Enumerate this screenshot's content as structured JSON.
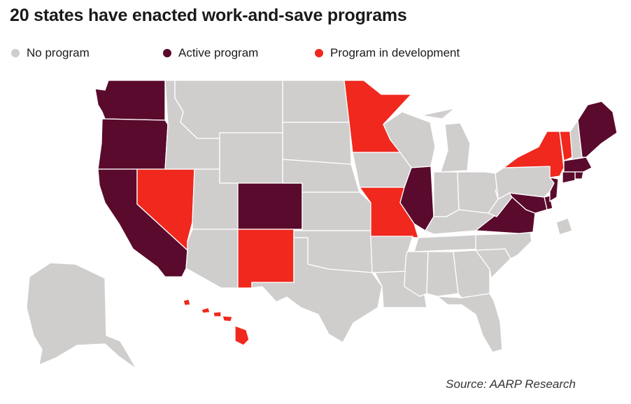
{
  "title": "20 states have enacted work-and-save programs",
  "legend": [
    {
      "key": "none",
      "label": "No program",
      "color": "#d0cdcd"
    },
    {
      "key": "active",
      "label": "Active program",
      "color": "#5a0a2c"
    },
    {
      "key": "dev",
      "label": "Program in development",
      "color": "#f0281e"
    }
  ],
  "source": "Source: AARP Research",
  "states": [
    {
      "abbr": "WA",
      "status": "active"
    },
    {
      "abbr": "OR",
      "status": "active"
    },
    {
      "abbr": "CA",
      "status": "active"
    },
    {
      "abbr": "NV",
      "status": "dev"
    },
    {
      "abbr": "ID",
      "status": "none"
    },
    {
      "abbr": "MT",
      "status": "none"
    },
    {
      "abbr": "WY",
      "status": "none"
    },
    {
      "abbr": "UT",
      "status": "none"
    },
    {
      "abbr": "AZ",
      "status": "none"
    },
    {
      "abbr": "CO",
      "status": "active"
    },
    {
      "abbr": "NM",
      "status": "dev"
    },
    {
      "abbr": "ND",
      "status": "none"
    },
    {
      "abbr": "SD",
      "status": "none"
    },
    {
      "abbr": "NE",
      "status": "none"
    },
    {
      "abbr": "KS",
      "status": "none"
    },
    {
      "abbr": "OK",
      "status": "none"
    },
    {
      "abbr": "TX",
      "status": "none"
    },
    {
      "abbr": "MN",
      "status": "dev"
    },
    {
      "abbr": "IA",
      "status": "none"
    },
    {
      "abbr": "MO",
      "status": "dev"
    },
    {
      "abbr": "AR",
      "status": "none"
    },
    {
      "abbr": "LA",
      "status": "none"
    },
    {
      "abbr": "WI",
      "status": "none"
    },
    {
      "abbr": "IL",
      "status": "active"
    },
    {
      "abbr": "MI",
      "status": "none"
    },
    {
      "abbr": "IN",
      "status": "none"
    },
    {
      "abbr": "OH",
      "status": "none"
    },
    {
      "abbr": "KY",
      "status": "none"
    },
    {
      "abbr": "TN",
      "status": "none"
    },
    {
      "abbr": "MS",
      "status": "none"
    },
    {
      "abbr": "AL",
      "status": "none"
    },
    {
      "abbr": "GA",
      "status": "none"
    },
    {
      "abbr": "FL",
      "status": "none"
    },
    {
      "abbr": "SC",
      "status": "none"
    },
    {
      "abbr": "NC",
      "status": "none"
    },
    {
      "abbr": "VA",
      "status": "active"
    },
    {
      "abbr": "WV",
      "status": "none"
    },
    {
      "abbr": "MD",
      "status": "active"
    },
    {
      "abbr": "DE",
      "status": "active"
    },
    {
      "abbr": "DC",
      "status": "none"
    },
    {
      "abbr": "PA",
      "status": "none"
    },
    {
      "abbr": "NJ",
      "status": "active"
    },
    {
      "abbr": "NY",
      "status": "dev"
    },
    {
      "abbr": "VT",
      "status": "dev"
    },
    {
      "abbr": "NH",
      "status": "none"
    },
    {
      "abbr": "ME",
      "status": "active"
    },
    {
      "abbr": "MA",
      "status": "active"
    },
    {
      "abbr": "RI",
      "status": "active"
    },
    {
      "abbr": "CT",
      "status": "active"
    },
    {
      "abbr": "AK",
      "status": "none"
    },
    {
      "abbr": "HI",
      "status": "dev"
    }
  ]
}
